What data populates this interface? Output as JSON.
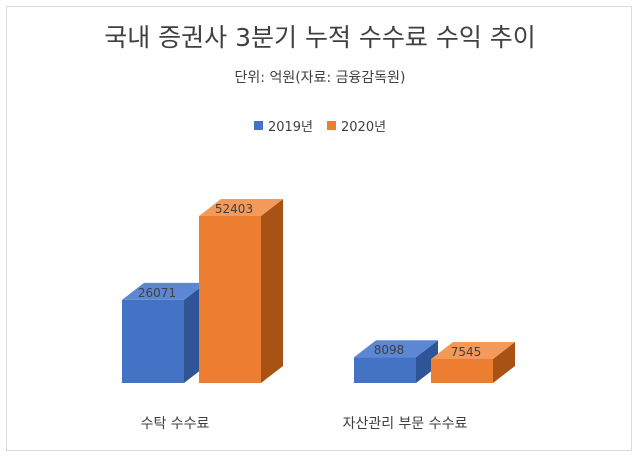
{
  "chart_data": {
    "type": "bar",
    "title": "국내 증권사 3분기 누적 수수료 수익 추이",
    "subtitle": "단위: 억원(자료: 금융감독원)",
    "categories": [
      "수탁 수수료",
      "자산관리 부문 수수료"
    ],
    "series": [
      {
        "name": "2019년",
        "values": [
          26071,
          8098
        ],
        "color": "#4472c4",
        "side": "#2f5597",
        "top": "#5b87d4"
      },
      {
        "name": "2020년",
        "values": [
          52403,
          7545
        ],
        "color": "#ed7d31",
        "side": "#a85213",
        "top": "#f39a5a"
      }
    ],
    "ylim": [
      0,
      52403
    ],
    "legend_position": "top",
    "grid": false
  }
}
